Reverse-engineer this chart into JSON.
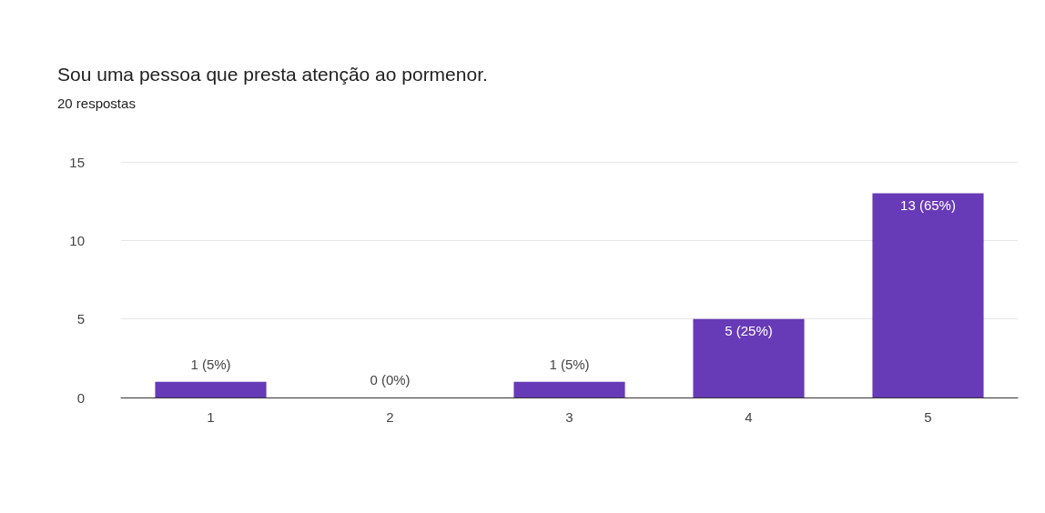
{
  "chart_data": {
    "type": "bar",
    "title": "Sou uma pessoa que presta atenção ao pormenor.",
    "subtitle": "20 respostas",
    "categories": [
      "1",
      "2",
      "3",
      "4",
      "5"
    ],
    "values": [
      1,
      0,
      1,
      5,
      13
    ],
    "value_labels": [
      "1 (5%)",
      "0 (0%)",
      "1 (5%)",
      "5 (25%)",
      "13 (65%)"
    ],
    "color": "#673ab7",
    "ylim": [
      0,
      15
    ],
    "yticks": [
      0,
      5,
      10,
      15
    ],
    "grid": "y"
  }
}
